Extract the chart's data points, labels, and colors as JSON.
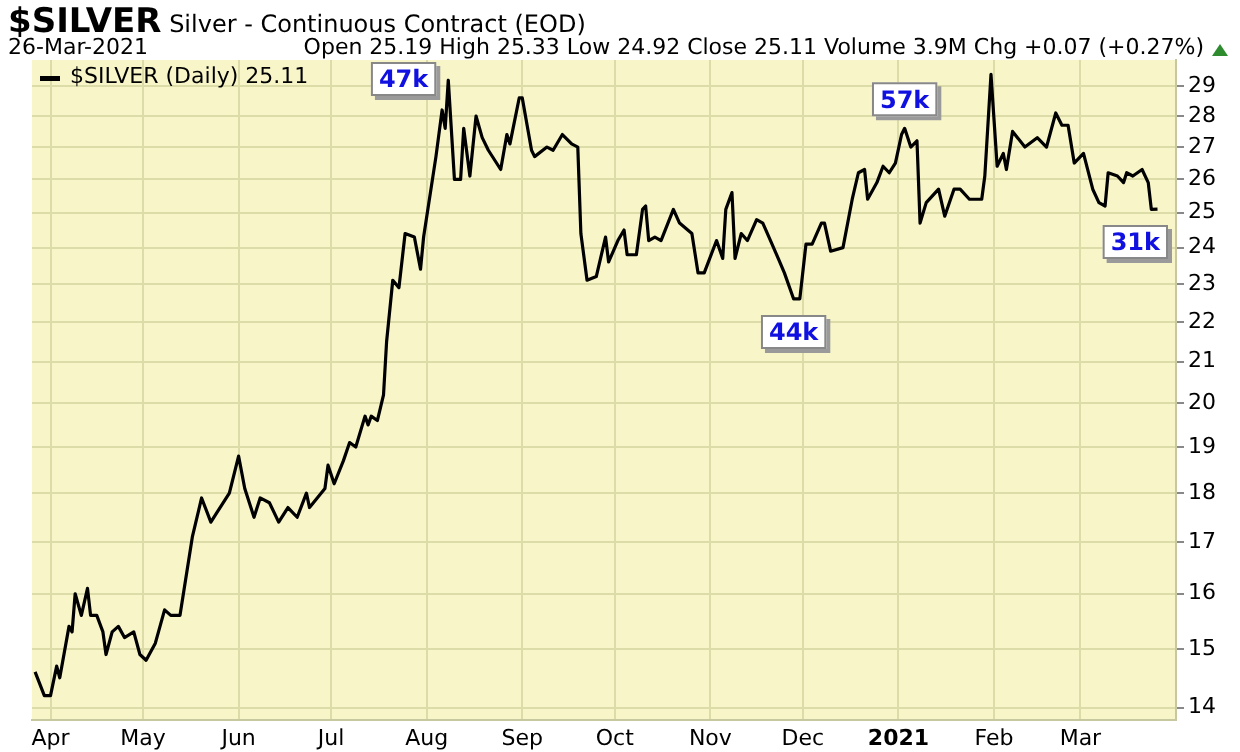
{
  "chart_data": {
    "type": "line",
    "title": "$SILVER Silver - Continuous Contract (EOD)",
    "annotations": [
      "26-Mar-2021",
      "Open 25.19 High 25.33 Low 24.92 Close 25.11 Volume 3.9M Chg +0.07 (+0.27%)",
      {
        "text": "47k",
        "x": "2020-08-08",
        "y": 29.2
      },
      {
        "text": "57k",
        "x": "2021-01-03",
        "y": 27.6
      },
      {
        "text": "44k",
        "x": "2020-11-28",
        "y": 22.6
      },
      {
        "text": "31k",
        "x": "2021-03-26",
        "y": 25.11
      }
    ],
    "x": [
      "2020-03-27",
      "2020-03-30",
      "2020-04-01",
      "2020-04-03",
      "2020-04-04",
      "2020-04-07",
      "2020-04-08",
      "2020-04-09",
      "2020-04-11",
      "2020-04-13",
      "2020-04-14",
      "2020-04-16",
      "2020-04-18",
      "2020-04-19",
      "2020-04-21",
      "2020-04-23",
      "2020-04-25",
      "2020-04-28",
      "2020-04-30",
      "2020-05-02",
      "2020-05-05",
      "2020-05-08",
      "2020-05-10",
      "2020-05-13",
      "2020-05-17",
      "2020-05-20",
      "2020-05-23",
      "2020-05-25",
      "2020-05-29",
      "2020-06-01",
      "2020-06-03",
      "2020-06-06",
      "2020-06-08",
      "2020-06-11",
      "2020-06-14",
      "2020-06-17",
      "2020-06-20",
      "2020-06-23",
      "2020-06-24",
      "2020-06-29",
      "2020-06-30",
      "2020-07-02",
      "2020-07-05",
      "2020-07-07",
      "2020-07-09",
      "2020-07-12",
      "2020-07-13",
      "2020-07-14",
      "2020-07-16",
      "2020-07-18",
      "2020-07-19",
      "2020-07-21",
      "2020-07-23",
      "2020-07-25",
      "2020-07-28",
      "2020-07-30",
      "2020-07-31",
      "2020-08-04",
      "2020-08-06",
      "2020-08-07",
      "2020-08-08",
      "2020-08-10",
      "2020-08-12",
      "2020-08-13",
      "2020-08-15",
      "2020-08-17",
      "2020-08-19",
      "2020-08-21",
      "2020-08-25",
      "2020-08-27",
      "2020-08-28",
      "2020-08-31",
      "2020-09-01",
      "2020-09-04",
      "2020-09-05",
      "2020-09-09",
      "2020-09-11",
      "2020-09-14",
      "2020-09-17",
      "2020-09-19",
      "2020-09-20",
      "2020-09-22",
      "2020-09-25",
      "2020-09-28",
      "2020-09-29",
      "2020-10-02",
      "2020-10-04",
      "2020-10-05",
      "2020-10-08",
      "2020-10-10",
      "2020-10-11",
      "2020-10-12",
      "2020-10-14",
      "2020-10-16",
      "2020-10-20",
      "2020-10-22",
      "2020-10-26",
      "2020-10-28",
      "2020-10-30",
      "2020-11-03",
      "2020-11-05",
      "2020-11-06",
      "2020-11-08",
      "2020-11-09",
      "2020-11-11",
      "2020-11-13",
      "2020-11-16",
      "2020-11-18",
      "2020-11-20",
      "2020-11-23",
      "2020-11-25",
      "2020-11-28",
      "2020-11-30",
      "2020-12-02",
      "2020-12-04",
      "2020-12-07",
      "2020-12-08",
      "2020-12-10",
      "2020-12-14",
      "2020-12-17",
      "2020-12-19",
      "2020-12-21",
      "2020-12-22",
      "2020-12-25",
      "2020-12-27",
      "2020-12-29",
      "2020-12-31",
      "2021-01-02",
      "2021-01-03",
      "2021-01-05",
      "2021-01-07",
      "2021-01-08",
      "2021-01-10",
      "2021-01-14",
      "2021-01-16",
      "2021-01-19",
      "2021-01-21",
      "2021-01-24",
      "2021-01-28",
      "2021-01-29",
      "2021-01-31",
      "2021-02-02",
      "2021-02-04",
      "2021-02-05",
      "2021-02-07",
      "2021-02-11",
      "2021-02-15",
      "2021-02-18",
      "2021-02-21",
      "2021-02-23",
      "2021-02-25",
      "2021-02-27",
      "2021-03-02",
      "2021-03-05",
      "2021-03-07",
      "2021-03-09",
      "2021-03-10",
      "2021-03-13",
      "2021-03-15",
      "2021-03-16",
      "2021-03-18",
      "2021-03-21",
      "2021-03-23",
      "2021-03-24",
      "2021-03-26"
    ],
    "series": [
      {
        "name": "$SILVER (Daily) 25.11",
        "color": "#000000",
        "values": [
          14.6,
          14.2,
          14.2,
          14.7,
          14.5,
          15.4,
          15.3,
          16.0,
          15.6,
          16.1,
          15.6,
          15.6,
          15.3,
          14.9,
          15.3,
          15.4,
          15.2,
          15.3,
          14.9,
          14.8,
          15.1,
          15.7,
          15.6,
          15.6,
          17.1,
          17.9,
          17.4,
          17.6,
          18.0,
          18.8,
          18.1,
          17.5,
          17.9,
          17.8,
          17.4,
          17.7,
          17.5,
          18.0,
          17.7,
          18.1,
          18.6,
          18.2,
          18.7,
          19.1,
          19.0,
          19.7,
          19.5,
          19.7,
          19.6,
          20.2,
          21.5,
          23.1,
          22.9,
          24.4,
          24.3,
          23.4,
          24.3,
          26.7,
          28.2,
          27.6,
          29.2,
          26.0,
          26.0,
          27.6,
          26.1,
          28.0,
          27.3,
          26.9,
          26.3,
          27.4,
          27.1,
          28.6,
          28.6,
          26.9,
          26.7,
          27.0,
          26.9,
          27.4,
          27.1,
          27.0,
          24.4,
          23.1,
          23.2,
          24.3,
          23.6,
          24.2,
          24.5,
          23.8,
          23.8,
          25.1,
          25.2,
          24.2,
          24.3,
          24.2,
          25.1,
          24.7,
          24.4,
          23.3,
          23.3,
          24.2,
          23.7,
          25.1,
          25.6,
          23.7,
          24.4,
          24.2,
          24.8,
          24.7,
          24.3,
          23.7,
          23.3,
          22.6,
          22.6,
          24.1,
          24.1,
          24.7,
          24.7,
          23.9,
          24.0,
          25.4,
          26.2,
          26.3,
          25.4,
          25.9,
          26.4,
          26.2,
          26.5,
          27.4,
          27.6,
          27.0,
          27.2,
          24.7,
          25.3,
          25.7,
          24.9,
          25.7,
          25.7,
          25.4,
          25.4,
          26.1,
          29.4,
          26.4,
          26.8,
          26.3,
          27.5,
          27.0,
          27.3,
          27.0,
          28.1,
          27.7,
          27.7,
          26.5,
          26.8,
          25.7,
          25.3,
          25.2,
          26.2,
          26.1,
          25.9,
          26.2,
          26.1,
          26.3,
          25.9,
          25.1,
          25.11
        ]
      }
    ],
    "xlim": [
      "2020-03-26",
      "2021-04-01"
    ],
    "xticks": [
      {
        "value": "2020-04-01",
        "label": "Apr"
      },
      {
        "value": "2020-05-01",
        "label": "May"
      },
      {
        "value": "2020-06-01",
        "label": "Jun"
      },
      {
        "value": "2020-07-01",
        "label": "Jul"
      },
      {
        "value": "2020-08-01",
        "label": "Aug"
      },
      {
        "value": "2020-09-01",
        "label": "Sep"
      },
      {
        "value": "2020-10-01",
        "label": "Oct"
      },
      {
        "value": "2020-11-01",
        "label": "Nov"
      },
      {
        "value": "2020-12-01",
        "label": "Dec"
      },
      {
        "value": "2021-01-01",
        "label": "2021"
      },
      {
        "value": "2021-02-01",
        "label": "Feb"
      },
      {
        "value": "2021-03-01",
        "label": "Mar"
      }
    ],
    "ylim": [
      13.8,
      29.9
    ],
    "yticks": [
      14,
      15,
      16,
      17,
      18,
      19,
      20,
      21,
      22,
      23,
      24,
      25,
      26,
      27,
      28,
      29
    ],
    "log": true,
    "grid": true,
    "legend": "top left"
  }
}
